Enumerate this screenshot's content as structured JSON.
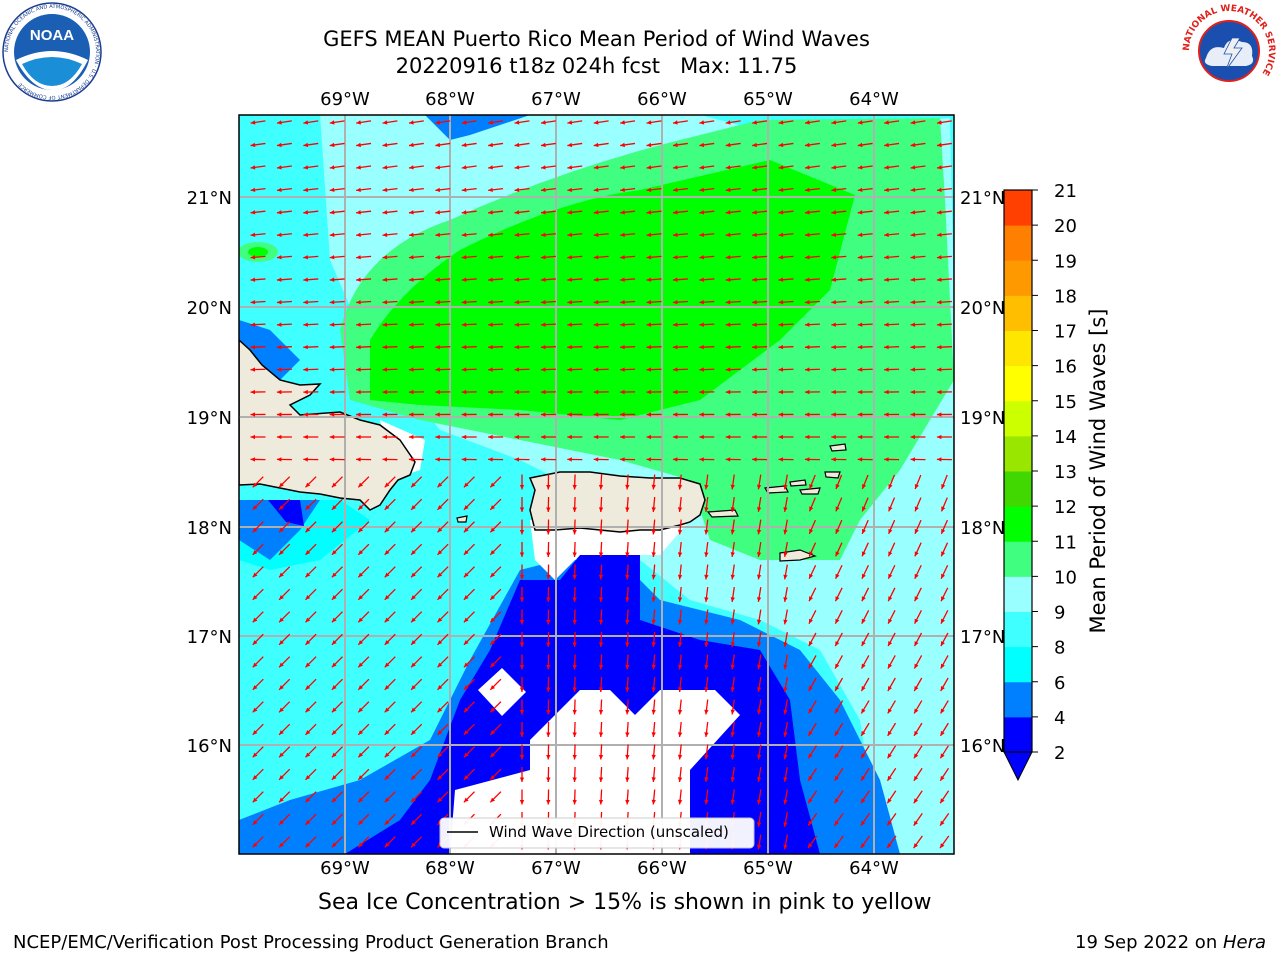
{
  "title": {
    "line1": "GEFS MEAN Puerto Rico Mean Period of Wind Waves",
    "line2": "20220916 t18z 024h fcst   Max: 11.75"
  },
  "logos": {
    "noaa": {
      "text": "NOAA",
      "ring_text": "NATIONAL OCEANIC AND ATMOSPHERIC ADMINISTRATION · U.S. DEPARTMENT OF COMMERCE"
    },
    "nws": {
      "ring_text": "NATIONAL WEATHER SERVICE"
    }
  },
  "map": {
    "lon_labels": [
      "69°W",
      "68°W",
      "67°W",
      "66°W",
      "65°W",
      "64°W"
    ],
    "lat_labels": [
      "21°N",
      "20°N",
      "19°N",
      "18°N",
      "17°N",
      "16°N"
    ],
    "legend_label": "Wind Wave Direction (unscaled)",
    "arrow_color": "#ff0000"
  },
  "colorbar": {
    "label": "Mean Period of Wind Waves [s]",
    "ticks": [
      "2",
      "4",
      "6",
      "8",
      "9",
      "10",
      "11",
      "12",
      "13",
      "14",
      "15",
      "16",
      "17",
      "18",
      "19",
      "20",
      "21"
    ],
    "colors": [
      "#0000ff",
      "#0080ff",
      "#00ffff",
      "#40ffff",
      "#99ffff",
      "#40ff80",
      "#00ff00",
      "#40d800",
      "#99e600",
      "#ccff00",
      "#ffff00",
      "#ffe600",
      "#ffbf00",
      "#ff9900",
      "#ff8000",
      "#ff4000",
      "#ff0000"
    ]
  },
  "ice_note": "Sea Ice Concentration > 15% is shown in pink to yellow",
  "footer": {
    "left": "NCEP/EMC/Verification Post Processing Product Generation Branch",
    "right_prefix": "19 Sep 2022 on ",
    "right_machine": "Hera"
  }
}
